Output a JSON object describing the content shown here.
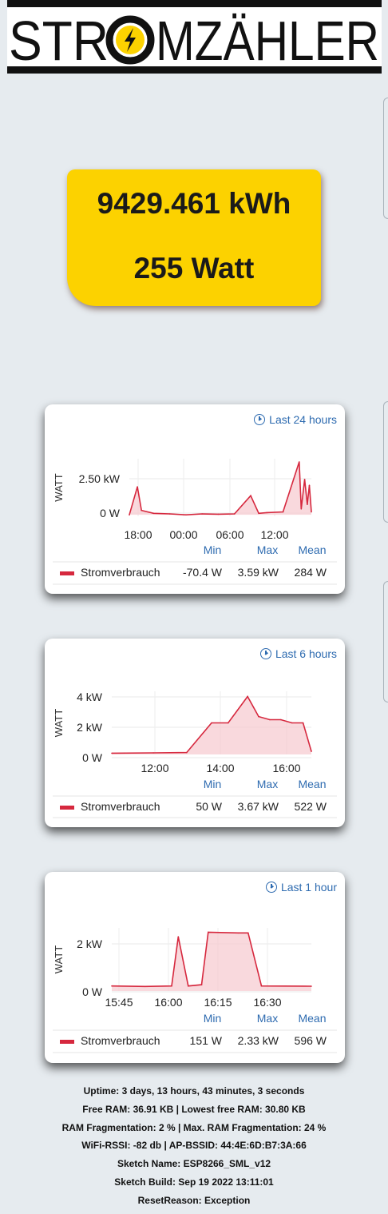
{
  "header": {
    "logo_text_left": "STR",
    "logo_text_right": "MZÄHLER",
    "logo_accent": "#fcd200"
  },
  "meter": {
    "energy": "9429.461 kWh",
    "power": "255 Watt",
    "color": "#fcd200"
  },
  "charts": [
    {
      "range_label": "Last 24 hours",
      "ylabel": "WATT",
      "yticks": [
        "2.50 kW",
        "0 W"
      ],
      "xticks": [
        "18:00",
        "00:00",
        "06:00",
        "12:00"
      ],
      "stat_headers": [
        "Min",
        "Max",
        "Mean"
      ],
      "series_name": "Stromverbrauch",
      "min": "-70.4 W",
      "max": "3.59 kW",
      "mean": "284 W"
    },
    {
      "range_label": "Last 6 hours",
      "ylabel": "WATT",
      "yticks": [
        "4 kW",
        "2 kW",
        "0 W"
      ],
      "xticks": [
        "12:00",
        "14:00",
        "16:00"
      ],
      "stat_headers": [
        "Min",
        "Max",
        "Mean"
      ],
      "series_name": "Stromverbrauch",
      "min": "50 W",
      "max": "3.67 kW",
      "mean": "522 W"
    },
    {
      "range_label": "Last 1 hour",
      "ylabel": "WATT",
      "yticks": [
        "2 kW",
        "0 W"
      ],
      "xticks": [
        "15:45",
        "16:00",
        "16:15",
        "16:30"
      ],
      "stat_headers": [
        "Min",
        "Max",
        "Mean"
      ],
      "series_name": "Stromverbrauch",
      "min": "151 W",
      "max": "2.33 kW",
      "mean": "596 W"
    }
  ],
  "chart_data": [
    {
      "type": "line",
      "title": "Last 24 hours",
      "ylabel": "WATT",
      "ylim": [
        -100,
        3800
      ],
      "x": [
        "17:00",
        "18:00",
        "18:30",
        "20:00",
        "22:00",
        "00:00",
        "02:00",
        "04:00",
        "06:00",
        "08:00",
        "09:00",
        "10:00",
        "12:00",
        "14:00",
        "14:15",
        "14:40",
        "15:00",
        "15:15",
        "15:30"
      ],
      "series": [
        {
          "name": "Stromverbrauch",
          "values": [
            0,
            1900,
            300,
            100,
            60,
            0,
            60,
            40,
            60,
            1300,
            100,
            150,
            200,
            3590,
            400,
            2400,
            700,
            2000,
            200
          ]
        }
      ],
      "color": "#d6283e"
    },
    {
      "type": "line",
      "title": "Last 6 hours",
      "ylabel": "WATT",
      "ylim": [
        0,
        4000
      ],
      "x": [
        "10:45",
        "12:00",
        "13:00",
        "13:45",
        "14:15",
        "14:50",
        "15:10",
        "15:30",
        "15:50",
        "16:10",
        "16:30",
        "16:45"
      ],
      "series": [
        {
          "name": "Stromverbrauch",
          "values": [
            80,
            100,
            120,
            2000,
            2000,
            3670,
            2400,
            2200,
            2200,
            2000,
            2000,
            200
          ]
        }
      ],
      "color": "#d6283e"
    },
    {
      "type": "line",
      "title": "Last 1 hour",
      "ylabel": "WATT",
      "ylim": [
        0,
        2500
      ],
      "x": [
        "15:45",
        "15:55",
        "16:03",
        "16:05",
        "16:08",
        "16:12",
        "16:14",
        "16:23",
        "16:26",
        "16:30",
        "16:45"
      ],
      "series": [
        {
          "name": "Stromverbrauch",
          "values": [
            200,
            180,
            200,
            2150,
            200,
            250,
            2330,
            2300,
            2300,
            200,
            190
          ]
        }
      ],
      "color": "#d6283e"
    }
  ],
  "footer": {
    "uptime": "Uptime: 3 days, 13 hours, 43 minutes, 3 seconds",
    "ram": "Free RAM: 36.91 KB | Lowest free RAM: 30.80 KB",
    "frag": "RAM Fragmentation: 2 % | Max. RAM Fragmentation: 24 %",
    "wifi": "WiFi-RSSI: -82 db | AP-BSSID: 44:4E:6D:B7:3A:66",
    "sketch": "Sketch Name: ESP8266_SML_v12",
    "build": "Sketch Build: Sep 19 2022 13:11:01",
    "reset": "ResetReason: Exception"
  }
}
